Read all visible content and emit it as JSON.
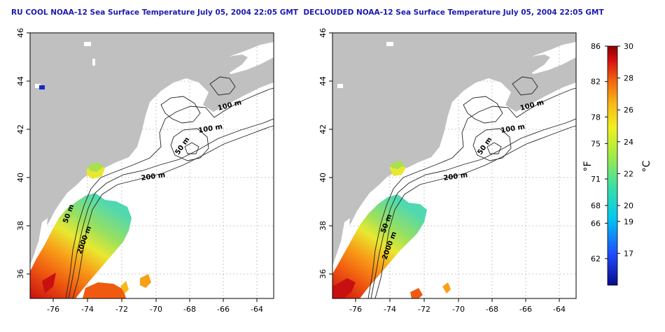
{
  "maps": [
    {
      "title": "RU COOL NOAA-12 Sea Surface Temperature July 05, 2004 22:05 GMT",
      "x_ticks": [
        "-76",
        "-74",
        "-72",
        "-70",
        "-68",
        "-66",
        "-64"
      ],
      "y_ticks": [
        "36",
        "38",
        "40",
        "42",
        "44",
        "46"
      ],
      "contour_labels": [
        "100 m",
        "100 m",
        "50 m",
        "200 m",
        "50 m",
        "2000 m"
      ]
    },
    {
      "title": "DECLOUDED NOAA-12 Sea Surface Temperature July 05, 2004 22:05 GMT",
      "x_ticks": [
        "-76",
        "-74",
        "-72",
        "-70",
        "-68",
        "-66",
        "-64"
      ],
      "y_ticks": [
        "36",
        "38",
        "40",
        "42",
        "44",
        "46"
      ],
      "contour_labels": [
        "100 m",
        "100 m",
        "50 m",
        "200 m",
        "50 m",
        "2000 m"
      ]
    }
  ],
  "colorbar": {
    "f_ticks": [
      "86",
      "82",
      "78",
      "75",
      "71",
      "68",
      "66",
      "62"
    ],
    "f_values": [
      86,
      82,
      78,
      75,
      71,
      68,
      66,
      62
    ],
    "c_ticks": [
      "30",
      "28",
      "26",
      "24",
      "22",
      "20",
      "19",
      "17"
    ],
    "c_values": [
      30,
      28,
      26,
      24,
      22,
      20,
      19,
      17
    ],
    "f_label": "°F",
    "c_label": "°C",
    "range_f": [
      59,
      86
    ]
  },
  "colors": {
    "land": "#c0c0c0",
    "title": "#1b1bb0",
    "warm": "#d01010",
    "cool": "#1020a0"
  }
}
